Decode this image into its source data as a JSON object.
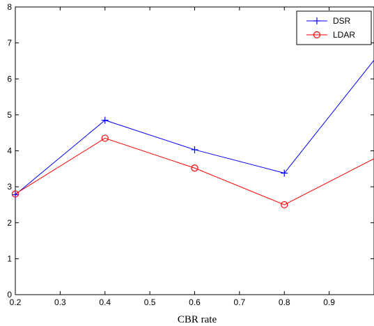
{
  "chart_data": {
    "type": "line",
    "title": "",
    "xlabel": "CBR rate",
    "ylabel": "",
    "xlim": [
      0.2,
      1.0
    ],
    "ylim": [
      0,
      8
    ],
    "xticks": [
      "0.2",
      "0.3",
      "0.4",
      "0.5",
      "0.6",
      "0.7",
      "0.8",
      "0.9"
    ],
    "yticks": [
      "0",
      "1",
      "2",
      "3",
      "4",
      "5",
      "6",
      "7",
      "8"
    ],
    "grid": false,
    "legend_position": "top-right",
    "x": [
      0.2,
      0.4,
      0.6,
      0.8,
      1.0
    ],
    "series": [
      {
        "name": "DSR",
        "marker": "plus",
        "color": "#0000ff",
        "values": [
          2.78,
          4.85,
          4.03,
          3.38,
          6.52
        ]
      },
      {
        "name": "LDAR",
        "marker": "circle",
        "color": "#ff0000",
        "values": [
          2.8,
          4.35,
          3.52,
          2.5,
          3.78
        ]
      }
    ]
  }
}
